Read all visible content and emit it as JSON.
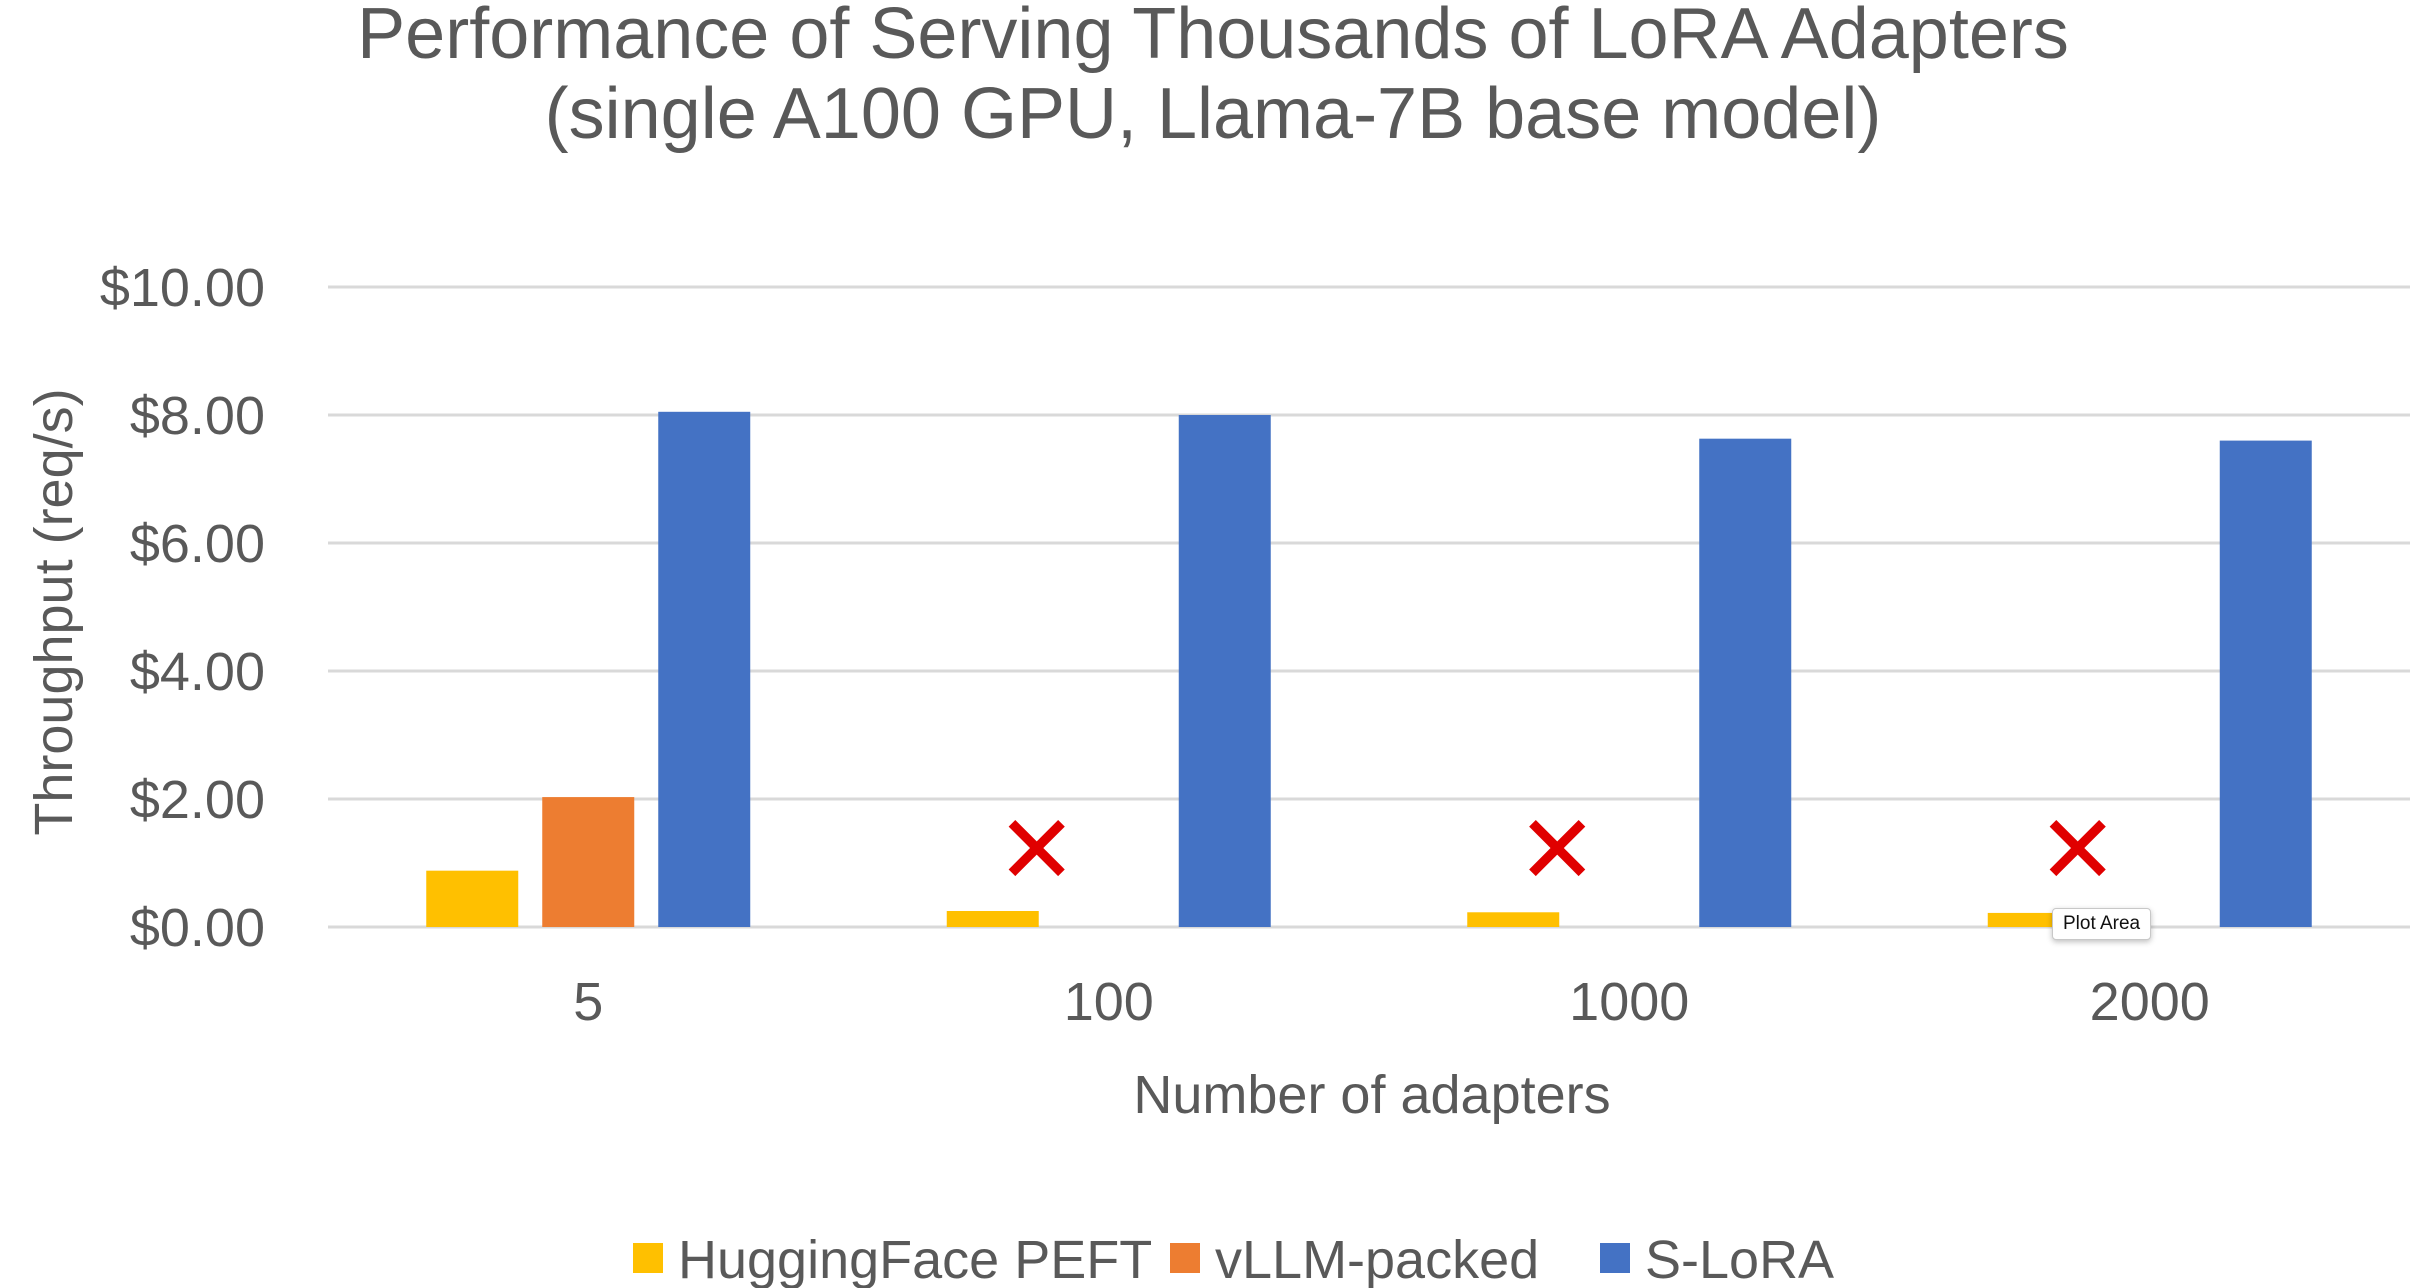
{
  "chart_data": {
    "type": "bar",
    "title": "Performance of Serving Thousands of LoRA Adapters",
    "subtitle": "(single A100 GPU, Llama-7B base model)",
    "xlabel": "Number of adapters",
    "ylabel": "Throughput (req/s)",
    "categories": [
      "5",
      "100",
      "1000",
      "2000"
    ],
    "ylim": [
      0,
      10
    ],
    "yticks": [
      0,
      2,
      4,
      6,
      8,
      10
    ],
    "ytick_labels": [
      "$0.00",
      "$2.00",
      "$4.00",
      "$6.00",
      "$8.00",
      "$10.00"
    ],
    "grid": true,
    "legend_position": "bottom",
    "series": [
      {
        "name": "HuggingFace PEFT",
        "color": "#FFC000",
        "values": [
          0.88,
          0.25,
          0.23,
          0.22
        ]
      },
      {
        "name": "vLLM-packed",
        "color": "#ED7D31",
        "values": [
          2.03,
          null,
          null,
          null
        ]
      },
      {
        "name": "S-LoRA",
        "color": "#4472C4",
        "values": [
          8.05,
          8.0,
          7.63,
          7.6
        ]
      }
    ],
    "failure_marker": {
      "symbol": "✕",
      "color": "#E00000",
      "series": "vLLM-packed",
      "categories": [
        "100",
        "1000",
        "2000"
      ]
    }
  },
  "tooltip": {
    "text": "Plot Area"
  }
}
